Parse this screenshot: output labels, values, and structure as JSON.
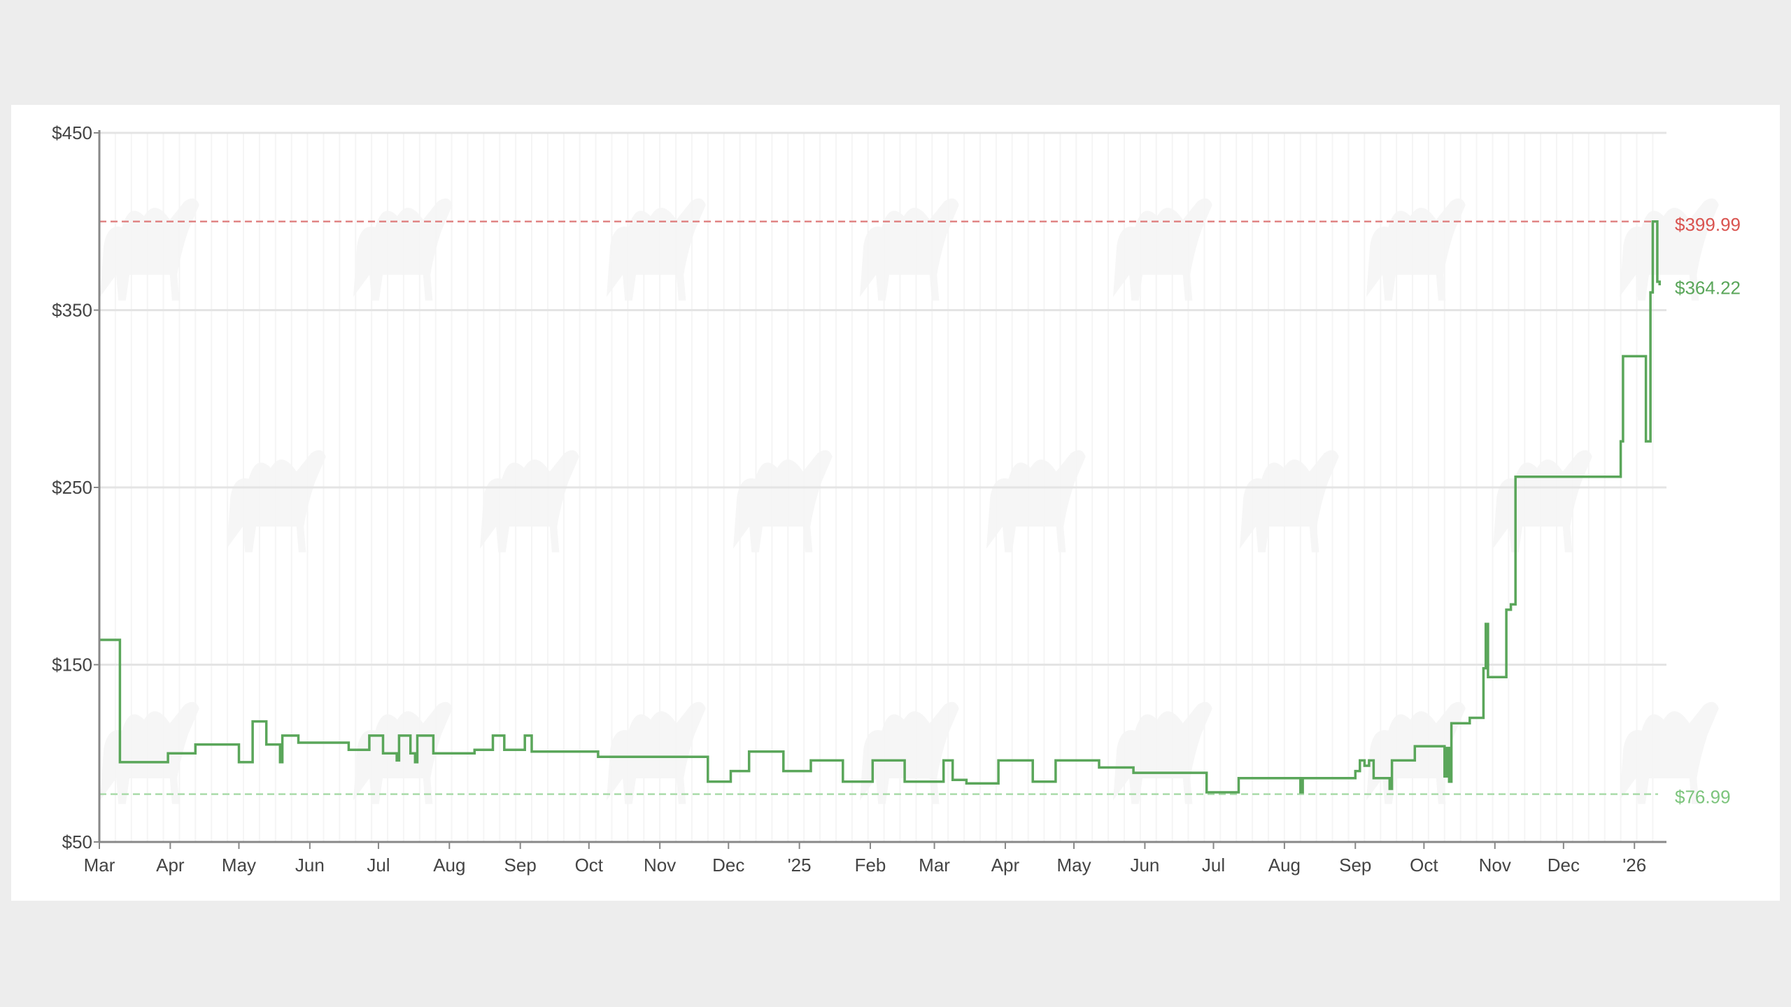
{
  "chart_data": {
    "type": "line",
    "title": "",
    "xlabel": "",
    "ylabel": "",
    "ylim": [
      50,
      450
    ],
    "xlim": [
      "2024-03-01",
      "2026-01-15"
    ],
    "grid": "horizontal major + light vertical minor",
    "y_ticks": [
      {
        "value": 50,
        "label": "$50"
      },
      {
        "value": 150,
        "label": "$150"
      },
      {
        "value": 250,
        "label": "$250"
      },
      {
        "value": 350,
        "label": "$350"
      },
      {
        "value": 450,
        "label": "$450"
      }
    ],
    "x_ticks": [
      {
        "date": "2024-03-01",
        "label": "Mar"
      },
      {
        "date": "2024-04-01",
        "label": "Apr"
      },
      {
        "date": "2024-05-01",
        "label": "May"
      },
      {
        "date": "2024-06-01",
        "label": "Jun"
      },
      {
        "date": "2024-07-01",
        "label": "Jul"
      },
      {
        "date": "2024-08-01",
        "label": "Aug"
      },
      {
        "date": "2024-09-01",
        "label": "Sep"
      },
      {
        "date": "2024-10-01",
        "label": "Oct"
      },
      {
        "date": "2024-11-01",
        "label": "Nov"
      },
      {
        "date": "2024-12-01",
        "label": "Dec"
      },
      {
        "date": "2025-01-01",
        "label": "'25"
      },
      {
        "date": "2025-02-01",
        "label": "Feb"
      },
      {
        "date": "2025-03-01",
        "label": "Mar"
      },
      {
        "date": "2025-04-01",
        "label": "Apr"
      },
      {
        "date": "2025-05-01",
        "label": "May"
      },
      {
        "date": "2025-06-01",
        "label": "Jun"
      },
      {
        "date": "2025-07-01",
        "label": "Jul"
      },
      {
        "date": "2025-08-01",
        "label": "Aug"
      },
      {
        "date": "2025-09-01",
        "label": "Sep"
      },
      {
        "date": "2025-10-01",
        "label": "Oct"
      },
      {
        "date": "2025-11-01",
        "label": "Nov"
      },
      {
        "date": "2025-12-01",
        "label": "Dec"
      },
      {
        "date": "2026-01-01",
        "label": "'26"
      }
    ],
    "reference_lines": [
      {
        "name": "highest",
        "value": 399.99,
        "label": "$399.99",
        "color": "#e08585",
        "label_color": "#d9534f"
      },
      {
        "name": "current",
        "value": 364.22,
        "label": "$364.22",
        "color": "#5aa65a",
        "label_color": "#5aa65a"
      },
      {
        "name": "lowest",
        "value": 76.99,
        "label": "$76.99",
        "color": "#a9dba9",
        "label_color": "#7cc47c"
      }
    ],
    "series": [
      {
        "color": "#5aa65a",
        "step": true,
        "points": [
          [
            "2024-03-01",
            164
          ],
          [
            "2024-03-10",
            95
          ],
          [
            "2024-03-31",
            100
          ],
          [
            "2024-04-12",
            105
          ],
          [
            "2024-05-01",
            95
          ],
          [
            "2024-05-07",
            106
          ],
          [
            "2024-05-07",
            118
          ],
          [
            "2024-05-13",
            105
          ],
          [
            "2024-05-19",
            95
          ],
          [
            "2024-05-20",
            110
          ],
          [
            "2024-05-27",
            106
          ],
          [
            "2024-06-18",
            102
          ],
          [
            "2024-06-27",
            110
          ],
          [
            "2024-07-03",
            100
          ],
          [
            "2024-07-09",
            96
          ],
          [
            "2024-07-10",
            110
          ],
          [
            "2024-07-15",
            100
          ],
          [
            "2024-07-17",
            95
          ],
          [
            "2024-07-18",
            110
          ],
          [
            "2024-07-25",
            100
          ],
          [
            "2024-08-12",
            102
          ],
          [
            "2024-08-20",
            110
          ],
          [
            "2024-08-25",
            102
          ],
          [
            "2024-09-03",
            110
          ],
          [
            "2024-09-06",
            101
          ],
          [
            "2024-09-28",
            101
          ],
          [
            "2024-10-05",
            98
          ],
          [
            "2024-11-20",
            98
          ],
          [
            "2024-11-22",
            84
          ],
          [
            "2024-12-02",
            90
          ],
          [
            "2024-12-10",
            101
          ],
          [
            "2024-12-25",
            90
          ],
          [
            "2025-01-06",
            96
          ],
          [
            "2025-01-20",
            84
          ],
          [
            "2025-02-02",
            96
          ],
          [
            "2025-02-16",
            84
          ],
          [
            "2025-03-05",
            96
          ],
          [
            "2025-03-09",
            85
          ],
          [
            "2025-03-15",
            83
          ],
          [
            "2025-03-29",
            96
          ],
          [
            "2025-04-13",
            84
          ],
          [
            "2025-04-23",
            96
          ],
          [
            "2025-05-12",
            92
          ],
          [
            "2025-05-27",
            89
          ],
          [
            "2025-06-28",
            78
          ],
          [
            "2025-07-12",
            86
          ],
          [
            "2025-08-06",
            86
          ],
          [
            "2025-08-08",
            78
          ],
          [
            "2025-08-09",
            86
          ],
          [
            "2025-08-29",
            86
          ],
          [
            "2025-09-01",
            90
          ],
          [
            "2025-09-03",
            96
          ],
          [
            "2025-09-05",
            93
          ],
          [
            "2025-09-07",
            96
          ],
          [
            "2025-09-09",
            86
          ],
          [
            "2025-09-16",
            80
          ],
          [
            "2025-09-17",
            96
          ],
          [
            "2025-09-27",
            104
          ],
          [
            "2025-10-01",
            104
          ],
          [
            "2025-10-10",
            87
          ],
          [
            "2025-10-11",
            103
          ],
          [
            "2025-10-12",
            84
          ],
          [
            "2025-10-13",
            117
          ],
          [
            "2025-10-21",
            120
          ],
          [
            "2025-10-27",
            148
          ],
          [
            "2025-10-28",
            173
          ],
          [
            "2025-10-29",
            143
          ],
          [
            "2025-11-06",
            181
          ],
          [
            "2025-11-08",
            184
          ],
          [
            "2025-11-10",
            256
          ],
          [
            "2025-12-26",
            276
          ],
          [
            "2025-12-27",
            324
          ],
          [
            "2026-01-06",
            276
          ],
          [
            "2026-01-08",
            360
          ],
          [
            "2026-01-09",
            400
          ],
          [
            "2026-01-11",
            366
          ],
          [
            "2026-01-12",
            364
          ]
        ]
      }
    ]
  }
}
